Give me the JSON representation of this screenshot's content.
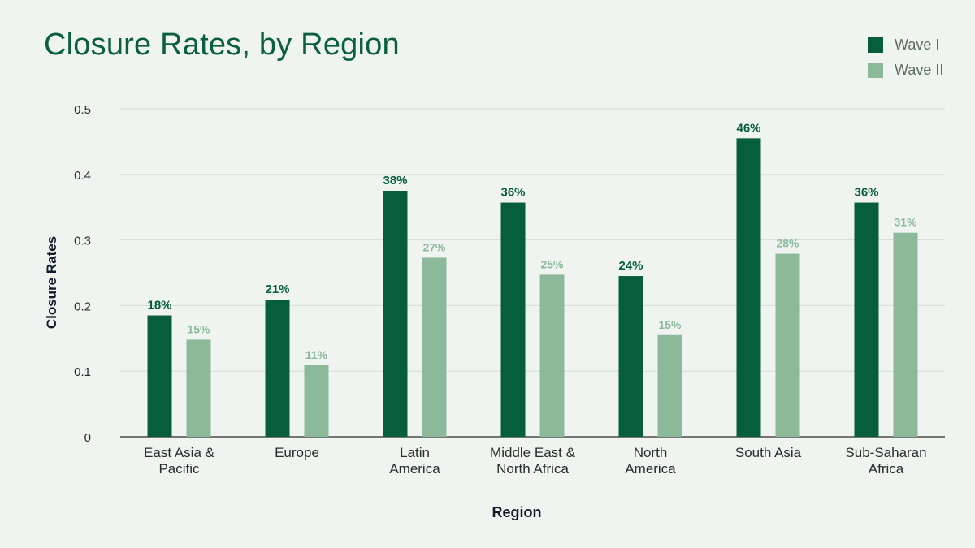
{
  "colors": {
    "background": "#eff4f0",
    "title": "#0b5e3e",
    "wave1": "#075e3d",
    "wave2": "#8db99b",
    "axis_text": "#2b2b2b",
    "axis_title": "#111a2c",
    "grid": "#d6dbd7",
    "axis_line": "#2b2b2b"
  },
  "chart_data": {
    "type": "bar",
    "title": "Closure Rates, by Region",
    "xlabel": "Region",
    "ylabel": "Closure Rates",
    "ylim": [
      0,
      0.5
    ],
    "yticks": [
      0,
      0.1,
      0.2,
      0.3,
      0.4,
      0.5
    ],
    "ytick_labels": [
      "0",
      "0.1",
      "0.2",
      "0.3",
      "0.4",
      "0.5"
    ],
    "grid": true,
    "legend_position": "top-right",
    "categories": [
      [
        "East Asia &",
        "Pacific"
      ],
      [
        "Europe"
      ],
      [
        "Latin",
        "America"
      ],
      [
        "Middle East &",
        "North Africa"
      ],
      [
        "North",
        "America"
      ],
      [
        "South Asia"
      ],
      [
        "Sub-Saharan",
        "Africa"
      ]
    ],
    "series": [
      {
        "name": "Wave I",
        "values": [
          0.185,
          0.209,
          0.375,
          0.357,
          0.245,
          0.455,
          0.357
        ],
        "labels": [
          "18%",
          "21%",
          "38%",
          "36%",
          "24%",
          "46%",
          "36%"
        ]
      },
      {
        "name": "Wave II",
        "values": [
          0.148,
          0.109,
          0.273,
          0.247,
          0.155,
          0.279,
          0.311
        ],
        "labels": [
          "15%",
          "11%",
          "27%",
          "25%",
          "15%",
          "28%",
          "31%"
        ]
      }
    ]
  }
}
